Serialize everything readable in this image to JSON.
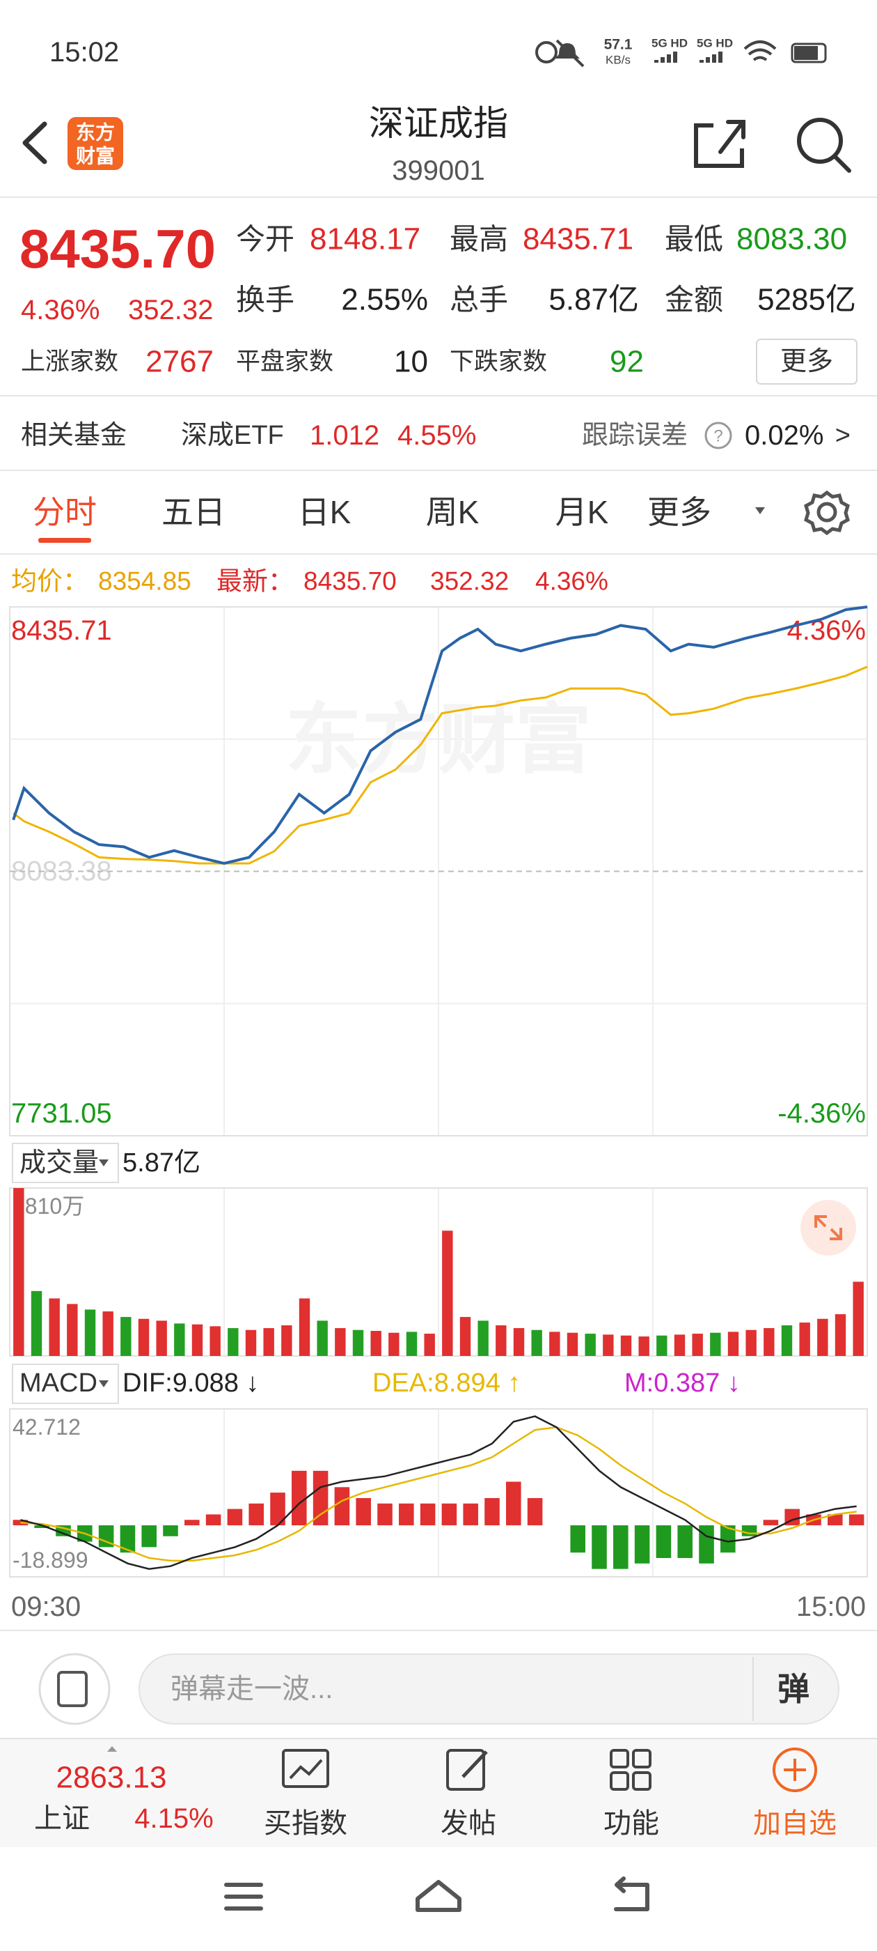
{
  "status_bar": {
    "time": "15:02",
    "speed": "57.1",
    "speed_unit": "KB/s",
    "network_1": "5G HD",
    "network_2": "5G HD"
  },
  "header": {
    "logo_line_1": "东方",
    "logo_line_2": "财富",
    "title": "深证成指",
    "code": "399001"
  },
  "quote": {
    "price": "8435.70",
    "change_pct": "4.36%",
    "change": "352.32",
    "fields": [
      {
        "label": "今开",
        "value": "8148.17"
      },
      {
        "label": "最高",
        "value": "8435.71"
      },
      {
        "label": "最低",
        "value": "8083.30"
      },
      {
        "label": "换手",
        "value": "2.55%"
      },
      {
        "label": "总手",
        "value": "5.87亿"
      },
      {
        "label": "金额",
        "value": "5285亿"
      },
      {
        "label": "上涨家数",
        "value": "2767"
      },
      {
        "label": "平盘家数",
        "value": "10"
      },
      {
        "label": "下跌家数",
        "value": "92"
      }
    ],
    "more_button": "更多"
  },
  "fund": {
    "label": "相关基金",
    "name": "深成ETF",
    "price": "1.012",
    "change_pct": "4.55%",
    "tracking_label": "跟踪误差",
    "tracking_value": "0.02%",
    "arrow": ">"
  },
  "tabs": [
    "分时",
    "五日",
    "日K",
    "周K",
    "月K",
    "更多"
  ],
  "active_tab": 0,
  "info_line": {
    "avg_label": "均价：",
    "avg_value": "8354.85",
    "last_label": "最新：",
    "last_value": "8435.70",
    "change": "352.32",
    "change_pct": "4.36%"
  },
  "price_chart": {
    "watermark": "东方财富",
    "ylim": [
      7731.05,
      8435.71
    ],
    "yticks": [
      7731.05,
      8083.38,
      8435.71
    ],
    "pct_labels": [
      "-4.36%",
      "4.36%"
    ],
    "xlim": [
      0,
      240
    ],
    "minutes": [
      1,
      4,
      11,
      18,
      25,
      32,
      39,
      46,
      53,
      60,
      67,
      74,
      81,
      88,
      95,
      101,
      108,
      115,
      121,
      126,
      131,
      136,
      143,
      150,
      157,
      164,
      171,
      178,
      185,
      190,
      197,
      206,
      213,
      220,
      227,
      234,
      240
    ],
    "price": [
      8152,
      8194,
      8161,
      8136,
      8119,
      8116,
      8102,
      8111,
      8102,
      8094,
      8102,
      8136,
      8186,
      8161,
      8186,
      8244,
      8269,
      8286,
      8377,
      8394,
      8406,
      8386,
      8377,
      8386,
      8394,
      8399,
      8411,
      8406,
      8377,
      8386,
      8382,
      8394,
      8402,
      8411,
      8419,
      8432,
      8435.71
    ],
    "average": [
      8161,
      8150,
      8136,
      8120,
      8102,
      8100,
      8099,
      8097,
      8094,
      8094,
      8094,
      8110,
      8144,
      8152,
      8161,
      8202,
      8219,
      8252,
      8294,
      8298,
      8302,
      8304,
      8311,
      8315,
      8327,
      8327,
      8327,
      8319,
      8292,
      8294,
      8300,
      8314,
      8320,
      8327,
      8335,
      8344,
      8356
    ],
    "price_color": "#2a64a8",
    "average_color": "#f0b400"
  },
  "volume_chart": {
    "label": "成交量",
    "total": "5.87亿",
    "ylim": [
      0,
      1810
    ],
    "yticks": [
      {
        "value": 1810,
        "label": "1810万"
      }
    ],
    "values": [
      1810,
      700,
      620,
      560,
      500,
      480,
      420,
      400,
      380,
      350,
      340,
      320,
      300,
      280,
      300,
      330,
      620,
      380,
      300,
      280,
      270,
      250,
      260,
      240,
      1350,
      420,
      380,
      330,
      300,
      280,
      260,
      250,
      240,
      230,
      220,
      210,
      220,
      230,
      240,
      250,
      260,
      280,
      300,
      330,
      360,
      400,
      450,
      800
    ],
    "up": [
      true,
      false,
      true,
      true,
      false,
      true,
      false,
      true,
      true,
      false,
      true,
      true,
      false,
      true,
      true,
      true,
      true,
      false,
      true,
      false,
      true,
      true,
      false,
      true,
      true,
      true,
      false,
      true,
      true,
      false,
      true,
      true,
      false,
      true,
      true,
      true,
      false,
      true,
      true,
      false,
      true,
      true,
      true,
      false,
      true,
      true,
      true,
      true
    ]
  },
  "macd_chart": {
    "label": "MACD",
    "dif": "DIF:9.088 ↓",
    "dea": "DEA:8.894 ↑",
    "m": "M:0.387 ↓",
    "ylim": [
      -18.899,
      42.712
    ],
    "yticks": [
      -18.899,
      42.712
    ],
    "dif_values": [
      2,
      0,
      -3,
      -6,
      -10,
      -14,
      -16,
      -15,
      -12,
      -10,
      -8,
      -5,
      0,
      8,
      14,
      16,
      17,
      18,
      20,
      22,
      24,
      26,
      30,
      38,
      40,
      36,
      28,
      20,
      14,
      10,
      6,
      2,
      -4,
      -6,
      -5,
      -2,
      2,
      4,
      6,
      7
    ],
    "dea_values": [
      1,
      0.5,
      -1,
      -3,
      -6,
      -9,
      -12,
      -13,
      -13,
      -12,
      -11,
      -9,
      -6,
      -2,
      4,
      9,
      12,
      14,
      16,
      18,
      20,
      22,
      25,
      30,
      35,
      36,
      33,
      28,
      22,
      17,
      12,
      8,
      3,
      -1,
      -3,
      -3,
      -1,
      2,
      4,
      5
    ],
    "hist_values": [
      2,
      -1,
      -4,
      -6,
      -8,
      -10,
      -8,
      -4,
      2,
      4,
      6,
      8,
      12,
      20,
      20,
      14,
      10,
      8,
      8,
      8,
      8,
      8,
      10,
      16,
      10,
      0,
      -10,
      -16,
      -16,
      -14,
      -12,
      -12,
      -14,
      -10,
      -4,
      2,
      6,
      4,
      4,
      4
    ]
  },
  "time_axis": [
    "09:30",
    "15:00"
  ],
  "comment_bar": {
    "placeholder": "弹幕走一波...",
    "button": "弹"
  },
  "bottom_nav": {
    "index_price": "2863.13",
    "index_name": "上证",
    "index_change": "4.15%",
    "items": [
      "买指数",
      "发帖",
      "功能",
      "加自选"
    ]
  }
}
